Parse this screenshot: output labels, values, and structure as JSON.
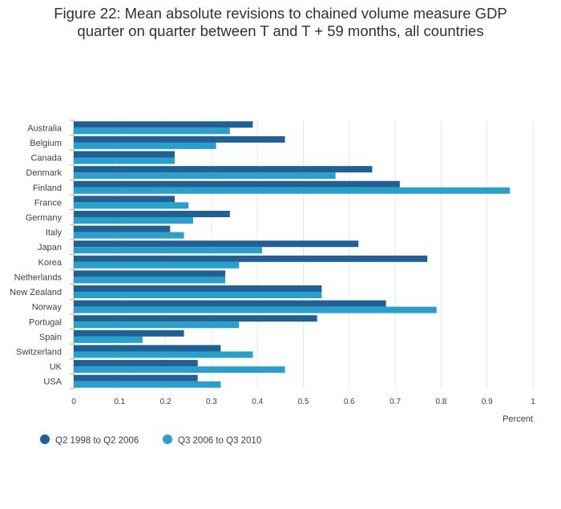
{
  "title": "Figure 22: Mean absolute revisions to chained volume measure GDP\nquarter on quarter between T and T + 59 months, all countries",
  "chart_data": {
    "type": "bar",
    "orientation": "horizontal",
    "title": "Figure 22: Mean absolute revisions to chained volume measure GDP quarter on quarter between T and T + 59 months, all countries",
    "xlabel": "Percent",
    "ylabel": "",
    "xlim": [
      0,
      1
    ],
    "xticks": [
      "0",
      "0.1",
      "0.2",
      "0.3",
      "0.4",
      "0.5",
      "0.6",
      "0.7",
      "0.8",
      "0.9",
      "1"
    ],
    "grid": true,
    "legend_position": "bottom-left",
    "categories": [
      "Australia",
      "Belgium",
      "Canada",
      "Denmark",
      "Finland",
      "France",
      "Germany",
      "Italy",
      "Japan",
      "Korea",
      "Netherlands",
      "New Zealand",
      "Norway",
      "Portugal",
      "Spain",
      "Switzerland",
      "UK",
      "USA"
    ],
    "series": [
      {
        "name": "Q2 1998 to Q2 2006",
        "color": "#206095",
        "values": [
          0.39,
          0.46,
          0.22,
          0.65,
          0.71,
          0.22,
          0.34,
          0.21,
          0.62,
          0.77,
          0.33,
          0.54,
          0.68,
          0.53,
          0.24,
          0.32,
          0.27,
          0.27
        ]
      },
      {
        "name": "Q3 2006 to Q3 2010",
        "color": "#27a0cc",
        "values": [
          0.34,
          0.31,
          0.22,
          0.57,
          0.95,
          0.25,
          0.26,
          0.24,
          0.41,
          0.36,
          0.33,
          0.54,
          0.79,
          0.36,
          0.15,
          0.39,
          0.46,
          0.32
        ]
      }
    ]
  }
}
